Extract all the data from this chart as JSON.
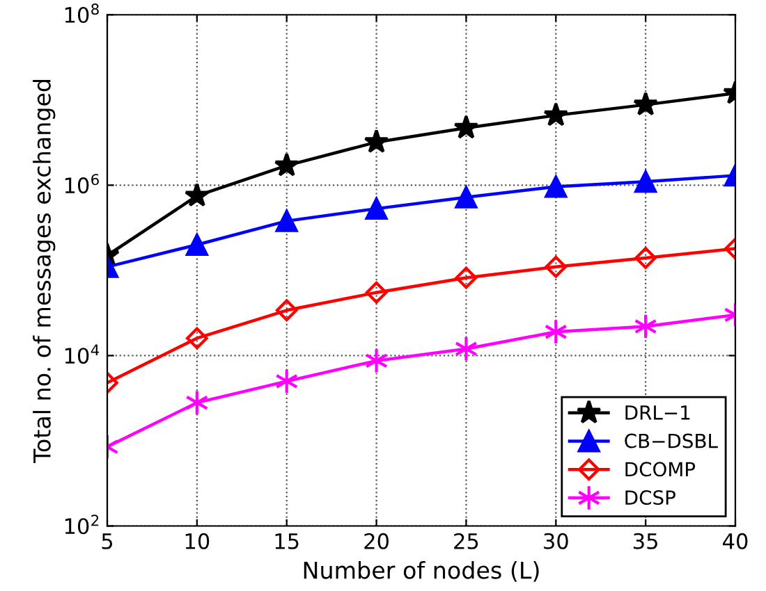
{
  "chart_data": {
    "type": "line",
    "xlabel": "Number of nodes (L)",
    "ylabel": "Total no. of messages exchanged",
    "x": [
      5,
      10,
      15,
      20,
      25,
      30,
      35,
      40
    ],
    "log": "y",
    "xlim": [
      5,
      40
    ],
    "ylim": [
      100,
      100000000
    ],
    "xticks": [
      5,
      10,
      15,
      20,
      25,
      30,
      35,
      40
    ],
    "yticks": [
      {
        "value": 100,
        "label": "10$^{2}$"
      },
      {
        "value": 10000,
        "label": "10$^{4}$"
      },
      {
        "value": 1000000,
        "label": "10$^{6}$"
      },
      {
        "value": 100000000,
        "label": "10$^{8}$"
      }
    ],
    "grid": true,
    "legend": "bottom right",
    "series": [
      {
        "name": "DRL−1",
        "color": "#000000",
        "marker": "star",
        "values": [
          150000,
          750000,
          1700000,
          3200000,
          4700000,
          6600000,
          8800000,
          12000000
        ]
      },
      {
        "name": "CB−DSBL",
        "color": "#0000ff",
        "marker": "triangle",
        "values": [
          110000,
          200000,
          380000,
          530000,
          720000,
          960000,
          1100000,
          1300000
        ]
      },
      {
        "name": "DCOMP",
        "color": "#ff0000",
        "marker": "diamond",
        "values": [
          4800,
          16000,
          34000,
          55000,
          82000,
          110000,
          140000,
          180000
        ]
      },
      {
        "name": "DCSP",
        "color": "#ff00ff",
        "marker": "cross",
        "values": [
          850,
          2800,
          5000,
          8700,
          12000,
          19000,
          22000,
          30000
        ]
      }
    ]
  }
}
